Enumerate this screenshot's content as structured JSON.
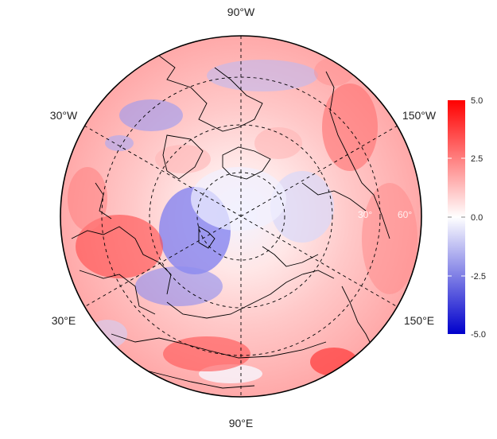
{
  "map": {
    "projection": "north-polar-stereographic",
    "longitude_labels": [
      {
        "text": "90°W",
        "pos": "top"
      },
      {
        "text": "30°W",
        "pos": "upper-left"
      },
      {
        "text": "150°W",
        "pos": "upper-right"
      },
      {
        "text": "30°E",
        "pos": "lower-left"
      },
      {
        "text": "150°E",
        "pos": "lower-right"
      },
      {
        "text": "90°E",
        "pos": "bottom"
      }
    ],
    "latitude_ring_labels": [
      "30°",
      "60°"
    ],
    "colors": {
      "high": "#ff0000",
      "mid": "#ffffff",
      "low": "#0000cc",
      "border": "#000000"
    }
  },
  "colorbar": {
    "min": -5.0,
    "max": 5.0,
    "ticks": [
      "5.0",
      "2.5",
      "0.0",
      "-2.5",
      "-5.0"
    ]
  }
}
